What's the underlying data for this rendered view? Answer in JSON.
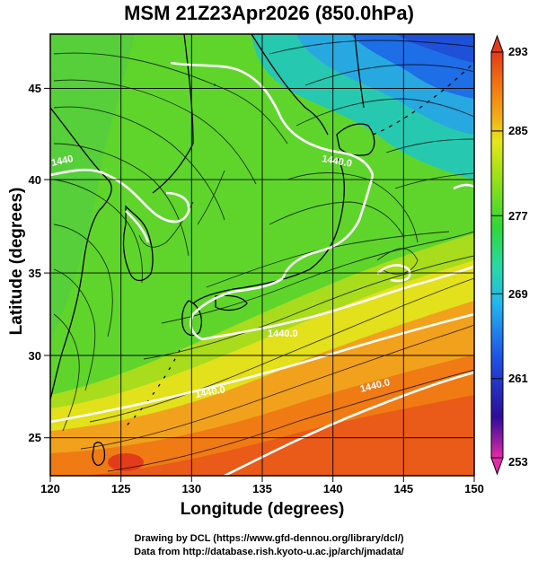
{
  "map": {
    "title": "MSM 21Z23Apr2026 (850.0hPa)",
    "xlabel": "Longitude (degrees)",
    "ylabel": "Latitude  (degrees)",
    "lon_range": [
      120,
      150
    ],
    "lat_range": [
      22.4,
      47.6
    ],
    "lon_ticks": [
      "120",
      "125",
      "130",
      "135",
      "140",
      "145",
      "150"
    ],
    "lat_ticks": [
      "25",
      "30",
      "35",
      "40",
      "45"
    ],
    "contour_labels": [
      "1440",
      "1440.0",
      "1440.0",
      "1440.0",
      "1440.0"
    ],
    "colorbar": {
      "labels": [
        "293",
        "285",
        "277",
        "269",
        "261",
        "253"
      ],
      "range": [
        253,
        293
      ],
      "colors": [
        "#e52aa8",
        "#2e0c9a",
        "#1e54e6",
        "#23b6ee",
        "#2ad8a6",
        "#2ed838",
        "#92e018",
        "#e6e618",
        "#f3a418",
        "#f06e10",
        "#e43a1a"
      ]
    },
    "credits": [
      "Drawing by DCL (https://www.gfd-dennou.org/library/dcl/)",
      "Data from http://database.rish.kyoto-u.ac.jp/arch/jmadata/"
    ]
  }
}
